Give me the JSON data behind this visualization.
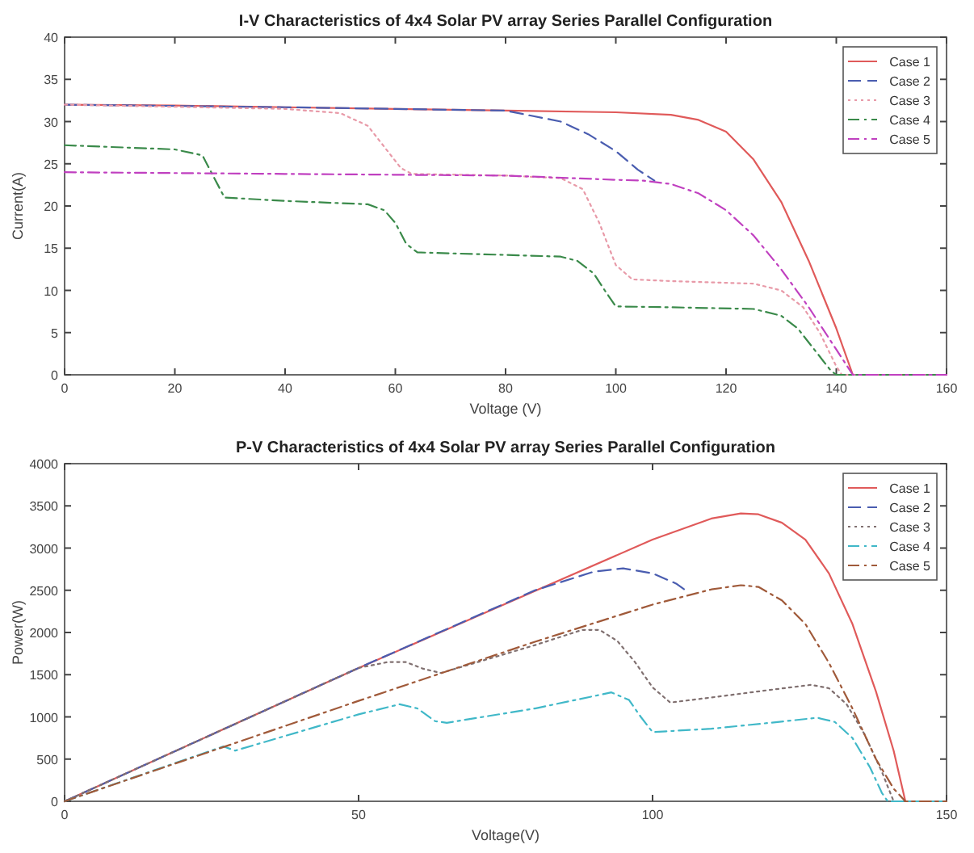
{
  "chart_data": [
    {
      "type": "line",
      "title": "I-V Characteristics of 4x4 Solar PV array Series Parallel Configuration",
      "xlabel": "Voltage (V)",
      "ylabel": "Current(A)",
      "xlim": [
        0,
        160
      ],
      "xticks": [
        0,
        20,
        40,
        60,
        80,
        100,
        120,
        140,
        160
      ],
      "ylim": [
        0,
        40
      ],
      "yticks": [
        0,
        5,
        10,
        15,
        20,
        25,
        30,
        35,
        40
      ],
      "grid": false,
      "legend": "top right",
      "series": [
        {
          "name": "Case 1",
          "color": "#e05a5a",
          "line_style": "solid",
          "x": [
            0,
            20,
            40,
            60,
            80,
            100,
            110,
            115,
            120,
            125,
            130,
            135,
            140,
            143,
            160
          ],
          "values": [
            32,
            31.9,
            31.7,
            31.5,
            31.3,
            31.1,
            30.8,
            30.2,
            28.8,
            25.5,
            20.5,
            13.5,
            5.5,
            0,
            0
          ]
        },
        {
          "name": "Case 2",
          "color": "#4a5db0",
          "line_style": "dashed",
          "x": [
            0,
            40,
            60,
            80,
            90,
            95,
            100,
            104,
            107
          ],
          "values": [
            32,
            31.7,
            31.5,
            31.3,
            30,
            28.5,
            26.5,
            24.3,
            23
          ]
        },
        {
          "name": "Case 3",
          "color": "#e89aa8",
          "line_style": "dotted",
          "x": [
            0,
            40,
            50,
            55,
            58,
            61,
            63,
            80,
            90,
            94,
            97,
            100,
            103,
            110,
            125,
            130,
            134,
            137,
            140,
            141,
            160
          ],
          "values": [
            32,
            31.5,
            31,
            29.5,
            27,
            24.5,
            23.8,
            23.6,
            23.3,
            22,
            18,
            13,
            11.3,
            11.1,
            10.8,
            10,
            8,
            5,
            1,
            0,
            0
          ]
        },
        {
          "name": "Case 4",
          "color": "#3a8a4a",
          "line_style": "dashdot",
          "x": [
            0,
            20,
            25,
            27,
            29,
            40,
            55,
            58,
            60,
            62,
            64,
            80,
            90,
            93,
            96,
            98,
            100,
            110,
            125,
            130,
            133,
            136,
            139,
            140,
            160
          ],
          "values": [
            27.2,
            26.7,
            26,
            23.5,
            21,
            20.6,
            20.2,
            19.5,
            18,
            15.5,
            14.5,
            14.2,
            14,
            13.5,
            12,
            10,
            8.1,
            8,
            7.8,
            7,
            5.5,
            3,
            0.5,
            0,
            0
          ]
        },
        {
          "name": "Case 5",
          "color": "#c040c0",
          "line_style": "dashdot",
          "x": [
            0,
            40,
            80,
            100,
            105,
            110,
            115,
            120,
            125,
            130,
            135,
            140,
            143,
            160
          ],
          "values": [
            24,
            23.8,
            23.6,
            23.1,
            23,
            22.6,
            21.5,
            19.5,
            16.5,
            12.5,
            8,
            3,
            0,
            0
          ]
        }
      ]
    },
    {
      "type": "line",
      "title": "P-V Characteristics of 4x4 Solar PV array Series Parallel Configuration",
      "xlabel": "Voltage(V)",
      "ylabel": "Power(W)",
      "xlim": [
        0,
        150
      ],
      "xticks": [
        0,
        50,
        100,
        150
      ],
      "ylim": [
        0,
        4000
      ],
      "yticks": [
        0,
        500,
        1000,
        1500,
        2000,
        2500,
        3000,
        3500,
        4000
      ],
      "grid": false,
      "legend": "top right",
      "series": [
        {
          "name": "Case 1",
          "color": "#e05a5a",
          "line_style": "solid",
          "x": [
            0,
            50,
            100,
            110,
            115,
            118,
            122,
            126,
            130,
            134,
            138,
            141,
            143,
            150
          ],
          "values": [
            0,
            1580,
            3100,
            3350,
            3410,
            3400,
            3300,
            3100,
            2700,
            2100,
            1300,
            600,
            0,
            0
          ]
        },
        {
          "name": "Case 2",
          "color": "#4a5db0",
          "line_style": "dashed",
          "x": [
            0,
            50,
            80,
            90,
            95,
            100,
            104,
            106
          ],
          "values": [
            0,
            1580,
            2500,
            2720,
            2760,
            2700,
            2580,
            2480
          ]
        },
        {
          "name": "Case 3",
          "color": "#807070",
          "line_style": "dotted",
          "x": [
            0,
            50,
            55,
            58,
            61,
            64,
            80,
            88,
            91,
            94,
            97,
            100,
            103,
            110,
            120,
            127,
            130,
            133,
            136,
            139,
            141,
            150
          ],
          "values": [
            0,
            1580,
            1650,
            1650,
            1570,
            1520,
            1850,
            2030,
            2030,
            1900,
            1650,
            1350,
            1170,
            1230,
            1320,
            1380,
            1340,
            1150,
            800,
            350,
            0,
            0
          ]
        },
        {
          "name": "Case 4",
          "color": "#40b8c8",
          "line_style": "dashdot",
          "x": [
            0,
            27,
            29,
            50,
            57,
            60,
            63,
            65,
            80,
            93,
            96,
            98,
            100,
            110,
            120,
            128,
            131,
            134,
            137,
            139,
            140,
            150
          ],
          "values": [
            0,
            650,
            600,
            1030,
            1150,
            1100,
            950,
            930,
            1100,
            1290,
            1200,
            1000,
            820,
            860,
            930,
            990,
            940,
            750,
            400,
            100,
            0,
            0
          ]
        },
        {
          "name": "Case 5",
          "color": "#a05a3a",
          "line_style": "dashdot",
          "x": [
            0,
            50,
            80,
            100,
            110,
            115,
            118,
            122,
            126,
            130,
            134,
            138,
            141,
            143,
            150
          ],
          "values": [
            0,
            1190,
            1890,
            2330,
            2510,
            2560,
            2540,
            2380,
            2100,
            1640,
            1100,
            500,
            150,
            0,
            0
          ]
        }
      ]
    }
  ]
}
